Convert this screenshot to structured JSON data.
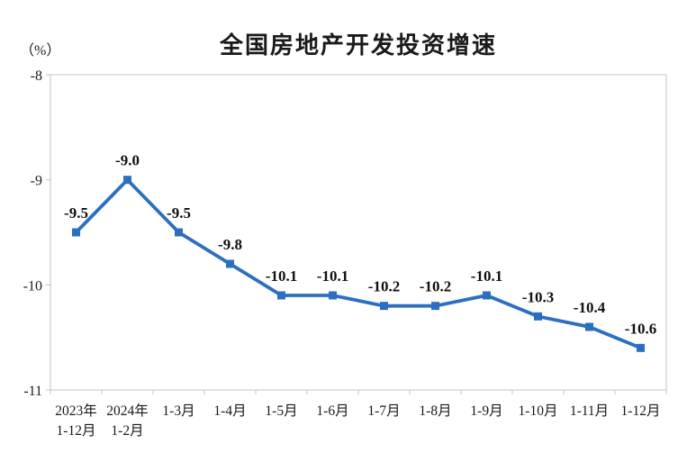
{
  "chart_data": {
    "type": "line",
    "title": "全国房地产开发投资增速",
    "unit_label": "（%）",
    "categories": [
      "2023年\n1-12月",
      "2024年\n1-2月",
      "1-3月",
      "1-4月",
      "1-5月",
      "1-6月",
      "1-7月",
      "1-8月",
      "1-9月",
      "1-10月",
      "1-11月",
      "1-12月"
    ],
    "series": [
      {
        "name": "全国房地产开发投资增速",
        "values": [
          -9.5,
          -9.0,
          -9.5,
          -9.8,
          -10.1,
          -10.1,
          -10.2,
          -10.2,
          -10.1,
          -10.3,
          -10.4,
          -10.6
        ]
      }
    ],
    "data_labels": [
      "-9.5",
      "-9.0",
      "-9.5",
      "-9.8",
      "-10.1",
      "-10.1",
      "-10.2",
      "-10.2",
      "-10.1",
      "-10.3",
      "-10.4",
      "-10.6"
    ],
    "xlabel": "",
    "ylabel": "",
    "ylim": [
      -11,
      -8
    ],
    "yticks": [
      "-8",
      "-9",
      "-10",
      "-11"
    ],
    "grid": false,
    "legend_position": "none",
    "marker": "square",
    "colors": {
      "line": "#2b6fc2",
      "marker": "#2b6fc2",
      "text": "#1a1a1a",
      "axis": "#c4c4c4"
    }
  }
}
